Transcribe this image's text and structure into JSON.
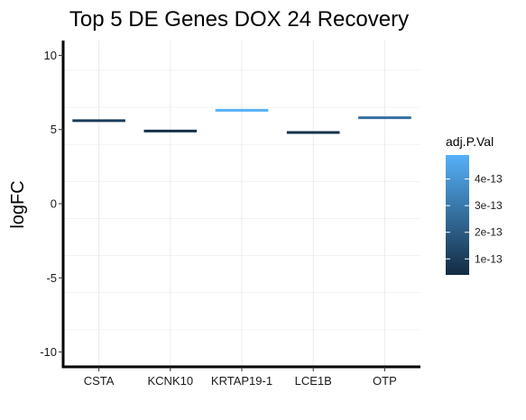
{
  "chart_data": {
    "type": "bar",
    "title": "Top 5 DE Genes DOX 24 Recovery",
    "xlabel": "",
    "ylabel": "logFC",
    "ylim": [
      -11,
      11
    ],
    "y_ticks": [
      -10,
      -5,
      0,
      5,
      10
    ],
    "grid": true,
    "categories": [
      "CSTA",
      "KCNK10",
      "KRTAP19-1",
      "LCE1B",
      "OTP"
    ],
    "values": [
      5.6,
      4.9,
      6.3,
      4.8,
      5.8
    ],
    "adj_p_val": [
      1e-13,
      6e-14,
      4.9e-13,
      6e-14,
      2.7e-13
    ],
    "legend": {
      "title": "adj.P.Val",
      "position": "right",
      "labels": [
        "4e-13",
        "3e-13",
        "2e-13",
        "1e-13"
      ],
      "label_values": [
        4e-13,
        3e-13,
        2e-13,
        1e-13
      ],
      "range": [
        4e-14,
        4.9e-13
      ],
      "color_low": "#132B43",
      "color_high": "#56B1F7"
    }
  }
}
